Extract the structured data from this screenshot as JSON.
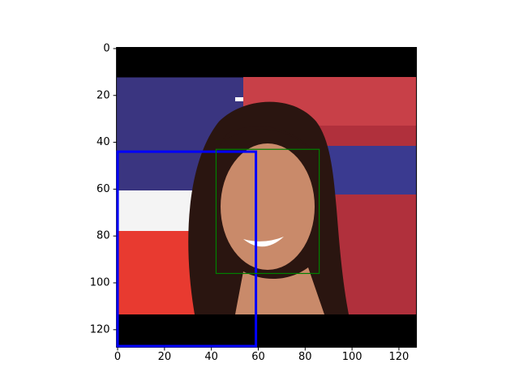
{
  "chart_data": {
    "type": "image",
    "xlim": [
      -0.5,
      127.5
    ],
    "ylim": [
      127.5,
      -0.5
    ],
    "xticks": [
      0,
      20,
      40,
      60,
      80,
      100,
      120
    ],
    "yticks": [
      0,
      20,
      40,
      60,
      80,
      100,
      120
    ],
    "boxes": [
      {
        "color": "#0000ff",
        "x": [
          0,
          59
        ],
        "y": [
          44,
          127
        ]
      },
      {
        "color": "#008000",
        "x": [
          42,
          86
        ],
        "y": [
          43,
          96
        ]
      }
    ]
  }
}
